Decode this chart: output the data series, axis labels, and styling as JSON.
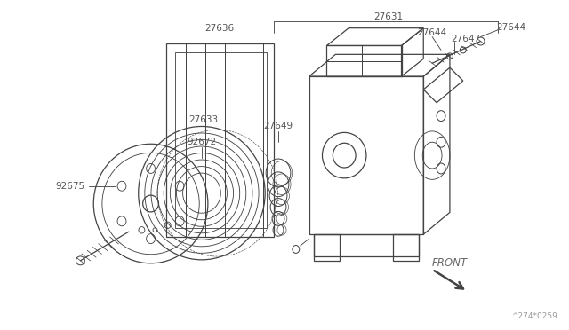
{
  "bg_color": "#ffffff",
  "line_color": "#444444",
  "text_color": "#555555",
  "fig_width": 6.4,
  "fig_height": 3.72,
  "dpi": 100,
  "watermark": "^274*0259"
}
